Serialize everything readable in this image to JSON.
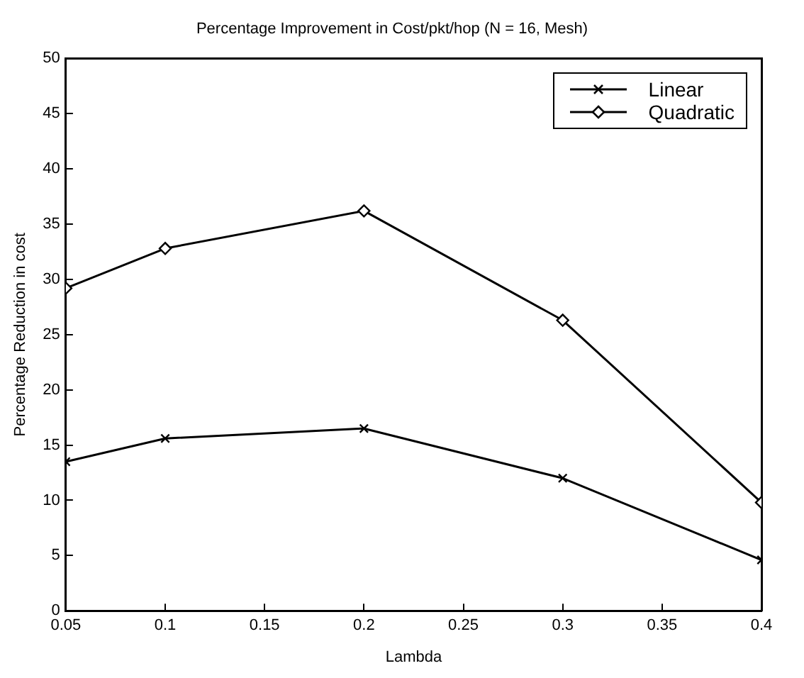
{
  "chart_data": {
    "type": "line",
    "title": "Percentage Improvement in Cost/pkt/hop (N = 16, Mesh)",
    "xlabel": "Lambda",
    "ylabel": "Percentage Reduction in cost",
    "x": [
      0.05,
      0.1,
      0.2,
      0.3,
      0.4
    ],
    "series": [
      {
        "name": "Linear",
        "color": "#000000",
        "marker": "cross",
        "values": [
          13.5,
          15.6,
          16.5,
          12,
          4.6
        ]
      },
      {
        "name": "Quadratic",
        "color": "#000000",
        "marker": "diamond",
        "values": [
          29.2,
          32.8,
          36.2,
          26.3,
          9.8
        ]
      }
    ],
    "xlim": [
      0.05,
      0.4
    ],
    "xticks": [
      0.05,
      0.1,
      0.15,
      0.2,
      0.25,
      0.3,
      0.35,
      0.4
    ],
    "ylim": [
      0,
      50
    ],
    "yticks": [
      0,
      5,
      10,
      15,
      20,
      25,
      30,
      35,
      40,
      45,
      50
    ],
    "grid": false,
    "legend": "top right",
    "line_style": "solid"
  }
}
